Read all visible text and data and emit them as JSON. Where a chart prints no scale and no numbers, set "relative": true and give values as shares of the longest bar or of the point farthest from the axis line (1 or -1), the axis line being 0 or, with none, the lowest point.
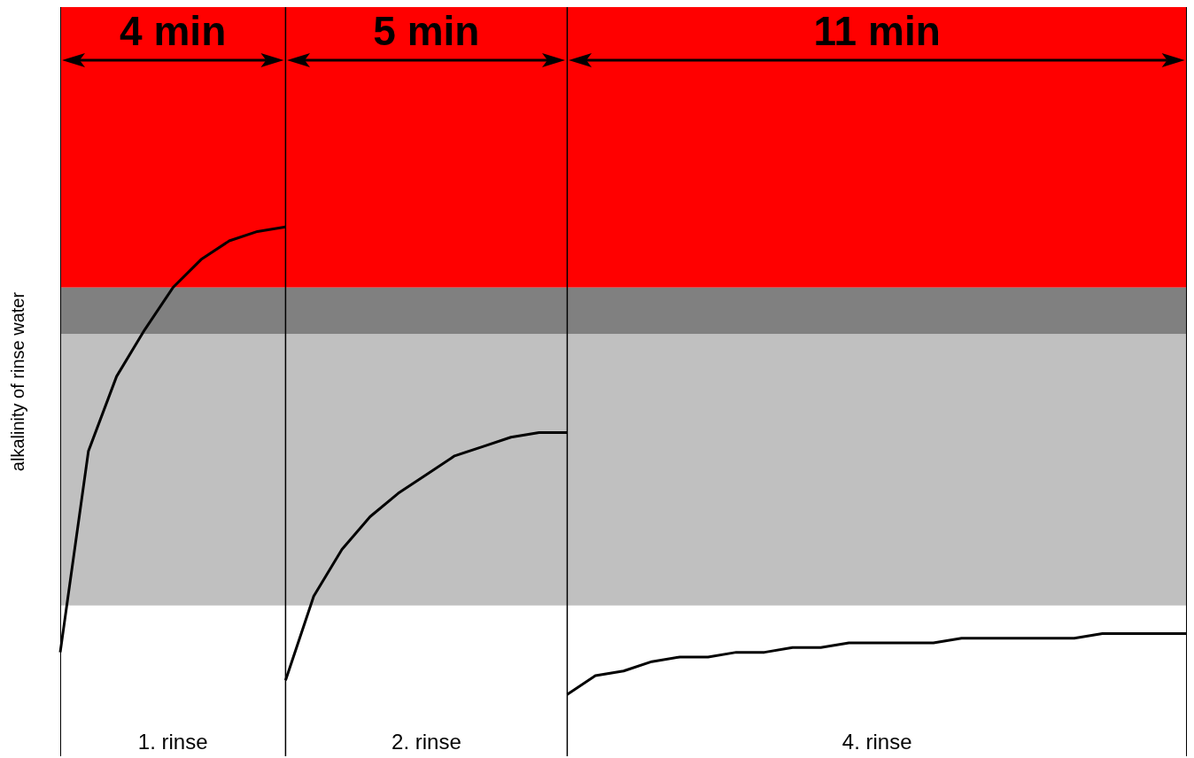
{
  "chart_data": {
    "type": "line",
    "relative": true,
    "ylabel": "alkalinity of rinse water",
    "tick_labels": false,
    "marker": "none",
    "line_style": "solid",
    "categories": [
      null,
      null,
      null,
      null,
      null,
      null,
      null,
      null,
      null,
      null,
      null,
      null,
      null,
      null,
      null,
      null,
      null,
      null,
      null,
      null,
      null,
      null,
      null,
      null,
      null,
      null,
      null,
      null,
      null,
      null,
      null,
      null,
      null,
      null,
      null,
      null,
      null,
      null,
      null,
      null,
      null
    ],
    "series": [
      {
        "color": "#000000",
        "values": [
          0.09,
          0.52,
          0.68,
          0.78,
          0.87,
          0.93,
          0.97,
          0.99,
          1.0,
          null,
          null,
          null,
          null,
          null,
          null,
          null,
          null,
          null,
          null,
          null,
          null,
          null,
          null,
          null,
          null,
          null,
          null,
          null,
          null,
          null,
          null,
          null,
          null,
          null,
          null,
          null,
          null,
          null,
          null,
          null,
          null
        ]
      },
      {
        "color": "#000000",
        "values": [
          null,
          null,
          null,
          null,
          null,
          null,
          null,
          null,
          0.03,
          0.21,
          0.31,
          0.38,
          0.43,
          0.47,
          0.51,
          0.53,
          0.55,
          0.56,
          0.56,
          null,
          null,
          null,
          null,
          null,
          null,
          null,
          null,
          null,
          null,
          null,
          null,
          null,
          null,
          null,
          null,
          null,
          null,
          null,
          null,
          null,
          null
        ]
      },
      {
        "color": "#000000",
        "values": [
          null,
          null,
          null,
          null,
          null,
          null,
          null,
          null,
          null,
          null,
          null,
          null,
          null,
          null,
          null,
          null,
          null,
          null,
          0.0,
          0.04,
          0.05,
          0.07,
          0.08,
          0.08,
          0.09,
          0.09,
          0.1,
          0.1,
          0.11,
          0.11,
          0.11,
          0.11,
          0.12,
          0.12,
          0.12,
          0.12,
          0.12,
          0.13,
          0.13,
          0.13,
          0.13
        ]
      }
    ],
    "bands": [
      {
        "axis": "y",
        "from": 0.87,
        "to": 1.47,
        "color": "#ff0000"
      },
      {
        "axis": "y",
        "from": 0.77,
        "to": 0.87,
        "color": "#808080"
      },
      {
        "axis": "y",
        "from": 0.19,
        "to": 0.77,
        "color": "#c0c0c0"
      }
    ],
    "annotations": [
      "4 min",
      "5 min",
      "11 min",
      "1. rinse",
      "2. rinse",
      "4. rinse"
    ]
  }
}
